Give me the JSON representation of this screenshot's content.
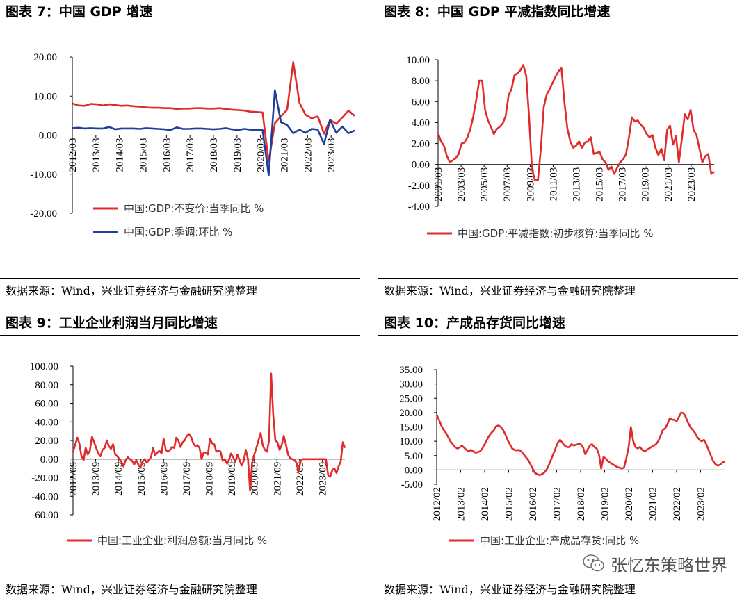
{
  "colors": {
    "red": "#e02b2b",
    "blue": "#1f3f99"
  },
  "watermark": {
    "text": "张忆东策略世界",
    "icon": "wechat-icon"
  },
  "source_text": "数据来源：Wind，兴业证券经济与金融研究院整理",
  "charts": [
    {
      "title": "图表 7：中国 GDP 增速",
      "chart_data": {
        "type": "line",
        "ylim": [
          -20,
          25
        ],
        "yticks": [
          "20.00",
          "10.00",
          "0.00",
          "-10.00",
          "-20.00"
        ],
        "ytick_values": [
          20,
          10,
          0,
          -10,
          -20
        ],
        "xticks": [
          "2012/03",
          "2013/03",
          "2014/03",
          "2015/03",
          "2016/03",
          "2017/03",
          "2018/03",
          "2019/03",
          "2020/03",
          "2021/03",
          "2022/03",
          "2023/03"
        ],
        "x_period_count": 48,
        "legend_position": "bottom",
        "series": [
          {
            "name": "中国:GDP:不变价:当季同比 %",
            "color": "#e02b2b",
            "values": [
              8.1,
              7.6,
              7.5,
              8.0,
              7.9,
              7.6,
              7.9,
              7.7,
              7.5,
              7.6,
              7.4,
              7.3,
              7.1,
              7.0,
              7.0,
              6.9,
              6.9,
              6.7,
              6.8,
              6.8,
              6.9,
              6.9,
              6.8,
              6.8,
              6.9,
              6.7,
              6.5,
              6.4,
              6.3,
              6.0,
              5.9,
              5.8,
              -6.9,
              3.1,
              4.8,
              6.5,
              18.7,
              8.3,
              5.2,
              4.3,
              4.8,
              0.4,
              3.9,
              2.9,
              4.5,
              6.3,
              4.9
            ]
          },
          {
            "name": "中国:GDP:季调:环比 %",
            "color": "#1f3f99",
            "values": [
              1.8,
              1.9,
              1.7,
              1.8,
              1.7,
              1.7,
              2.1,
              1.5,
              1.7,
              1.7,
              1.7,
              1.6,
              1.8,
              1.7,
              1.6,
              1.5,
              1.3,
              2.0,
              1.6,
              1.6,
              1.7,
              1.7,
              1.6,
              1.5,
              1.6,
              1.8,
              1.5,
              1.3,
              1.6,
              1.4,
              1.3,
              1.3,
              -10.3,
              11.5,
              3.3,
              2.6,
              0.5,
              1.4,
              0.6,
              1.6,
              1.4,
              -2.3,
              3.9,
              0.6,
              2.2,
              0.5,
              1.2
            ]
          }
        ]
      }
    },
    {
      "title": "图表 8：中国 GDP 平减指数同比增速",
      "chart_data": {
        "type": "line",
        "ylim": [
          -4,
          10
        ],
        "yticks": [
          "10.00",
          "8.00",
          "6.00",
          "4.00",
          "2.00",
          "0.00",
          "-2.00",
          "-4.00"
        ],
        "ytick_values": [
          10,
          8,
          6,
          4,
          2,
          0,
          -2,
          -4
        ],
        "xticks": [
          "2001/03",
          "2003/03",
          "2005/03",
          "2007/03",
          "2009/03",
          "2011/03",
          "2013/03",
          "2015/03",
          "2017/03",
          "2019/03",
          "2021/03",
          "2023/03"
        ],
        "x_period_count": 96,
        "legend_position": "bottom",
        "series": [
          {
            "name": "中国:GDP:平减指数:初步核算:当季同比 %",
            "color": "#e02b2b",
            "values": [
              3.0,
              2.2,
              1.8,
              0.8,
              0.2,
              0.4,
              0.6,
              1.0,
              2.0,
              2.1,
              2.6,
              3.4,
              4.6,
              6.2,
              8.0,
              8.0,
              5.2,
              4.2,
              3.6,
              2.9,
              3.4,
              3.6,
              3.9,
              4.6,
              6.6,
              7.2,
              8.5,
              8.7,
              9.0,
              9.5,
              8.5,
              4.5,
              -0.5,
              -1.5,
              -1.5,
              1.5,
              5.5,
              6.7,
              7.2,
              7.8,
              8.4,
              8.9,
              9.2,
              6.0,
              3.5,
              2.2,
              1.6,
              1.8,
              2.2,
              1.6,
              2.1,
              2.2,
              2.6,
              1.0,
              1.1,
              1.2,
              0.5,
              0.2,
              -0.5,
              -0.2,
              -0.9,
              -0.3,
              0.2,
              0.5,
              1.0,
              2.6,
              4.5,
              4.1,
              4.2,
              3.8,
              3.5,
              2.9,
              2.6,
              2.8,
              1.6,
              0.9,
              1.5,
              0.4,
              3.3,
              3.7,
              1.9,
              2.7,
              0.2,
              2.4,
              4.8,
              4.3,
              5.2,
              3.3,
              2.8,
              1.5,
              0.2,
              0.8,
              1.0,
              -0.9,
              -0.7
            ]
          }
        ]
      }
    },
    {
      "title": "图表 9：工业企业利润当月同比增速",
      "chart_data": {
        "type": "line",
        "ylim": [
          -60,
          100
        ],
        "yticks": [
          "100.00",
          "80.00",
          "60.00",
          "40.00",
          "20.00",
          "0.00",
          "-20.00",
          "-40.00",
          "-60.00"
        ],
        "ytick_values": [
          100,
          80,
          60,
          40,
          20,
          0,
          -20,
          -40,
          -60
        ],
        "xticks": [
          "2012/09",
          "2013/09",
          "2014/09",
          "2015/09",
          "2016/09",
          "2017/09",
          "2018/09",
          "2019/09",
          "2020/09",
          "2021/09",
          "2022/09",
          "2023/09"
        ],
        "x_period_count": 132,
        "legend_position": "bottom",
        "series": [
          {
            "name": "中国:工业企业:利润总额:当月同比 %",
            "color": "#e02b2b",
            "values": [
              8,
              15,
              23,
              17,
              3,
              -1,
              12,
              5,
              9,
              24,
              18,
              12,
              6,
              3,
              10,
              12,
              20,
              14,
              11,
              16,
              5,
              3,
              0,
              -3,
              -8,
              -1,
              2,
              0,
              -2,
              -6,
              -1,
              -6,
              -9,
              -3,
              0,
              -4,
              -1,
              2,
              12,
              4,
              7,
              9,
              6,
              22,
              10,
              8,
              10,
              13,
              12,
              23,
              20,
              13,
              18,
              20,
              25,
              27,
              24,
              17,
              14,
              15,
              12,
              0,
              7,
              7,
              5,
              22,
              17,
              16,
              8,
              9,
              8,
              -2,
              0,
              -5,
              -1,
              6,
              2,
              -3,
              5,
              -1,
              -7,
              -2,
              10,
              0,
              -34,
              -4,
              5,
              12,
              20,
              28,
              15,
              10,
              8,
              20,
              92,
              48,
              20,
              18,
              10,
              15,
              25,
              16,
              5,
              1,
              0,
              -1,
              -4,
              -14,
              -2,
              0,
              0,
              0,
              0,
              0,
              0,
              0,
              0,
              0,
              0,
              0,
              0,
              -17,
              -19,
              -12,
              -10,
              -15,
              -8,
              -3,
              18,
              12
            ]
          }
        ]
      }
    },
    {
      "title": "图表 10：产成品存货同比增速",
      "chart_data": {
        "type": "line",
        "ylim": [
          -5,
          35
        ],
        "yticks": [
          "35.00",
          "30.00",
          "25.00",
          "20.00",
          "15.00",
          "10.00",
          "5.00",
          "0.00",
          "-5.00"
        ],
        "ytick_values": [
          35,
          30,
          25,
          20,
          15,
          10,
          5,
          0,
          -5
        ],
        "xticks": [
          "2012/02",
          "2013/02",
          "2014/02",
          "2015/02",
          "2016/02",
          "2017/02",
          "2018/02",
          "2019/02",
          "2020/02",
          "2021/02",
          "2022/02",
          "2023/02"
        ],
        "x_period_count": 132,
        "legend_position": "bottom",
        "series": [
          {
            "name": "中国:工业企业:产成品存货:同比 %",
            "color": "#e02b2b",
            "values": [
              19.2,
              17.5,
              15.5,
              14.0,
              13.0,
              11.5,
              10.0,
              9.0,
              8.0,
              7.5,
              7.8,
              8.5,
              7.8,
              7.0,
              6.5,
              7.0,
              6.5,
              6.0,
              6.2,
              6.5,
              7.5,
              9.0,
              10.5,
              12.0,
              13.0,
              13.8,
              15.2,
              15.5,
              15.0,
              14.0,
              12.5,
              10.5,
              9.0,
              7.5,
              7.0,
              6.8,
              7.0,
              6.5,
              5.5,
              4.5,
              3.5,
              2.0,
              0.5,
              -1.0,
              -1.5,
              -1.8,
              -1.5,
              -1.0,
              0.0,
              1.5,
              3.5,
              5.5,
              7.5,
              9.5,
              10.5,
              9.5,
              8.5,
              8.0,
              8.0,
              9.0,
              8.5,
              8.8,
              9.0,
              9.0,
              8.0,
              5.5,
              7.0,
              8.5,
              9.0,
              8.0,
              7.5,
              5.5,
              0.5,
              4.5,
              4.0,
              3.0,
              2.5,
              2.0,
              1.5,
              1.0,
              0.8,
              0.5,
              0.8,
              4.0,
              8.0,
              15.0,
              10.0,
              8.0,
              7.5,
              8.0,
              7.0,
              6.5,
              7.0,
              7.5,
              8.0,
              8.5,
              9.0,
              10.0,
              12.0,
              14.0,
              14.5,
              16.0,
              18.0,
              17.5,
              17.5,
              17.0,
              18.5,
              20.0,
              19.8,
              18.5,
              16.5,
              15.0,
              14.0,
              13.0,
              11.5,
              10.5,
              10.0,
              10.5,
              9.0,
              7.0,
              5.0,
              3.0,
              2.0,
              1.5,
              1.8,
              2.5,
              3.0
            ]
          }
        ]
      }
    }
  ]
}
